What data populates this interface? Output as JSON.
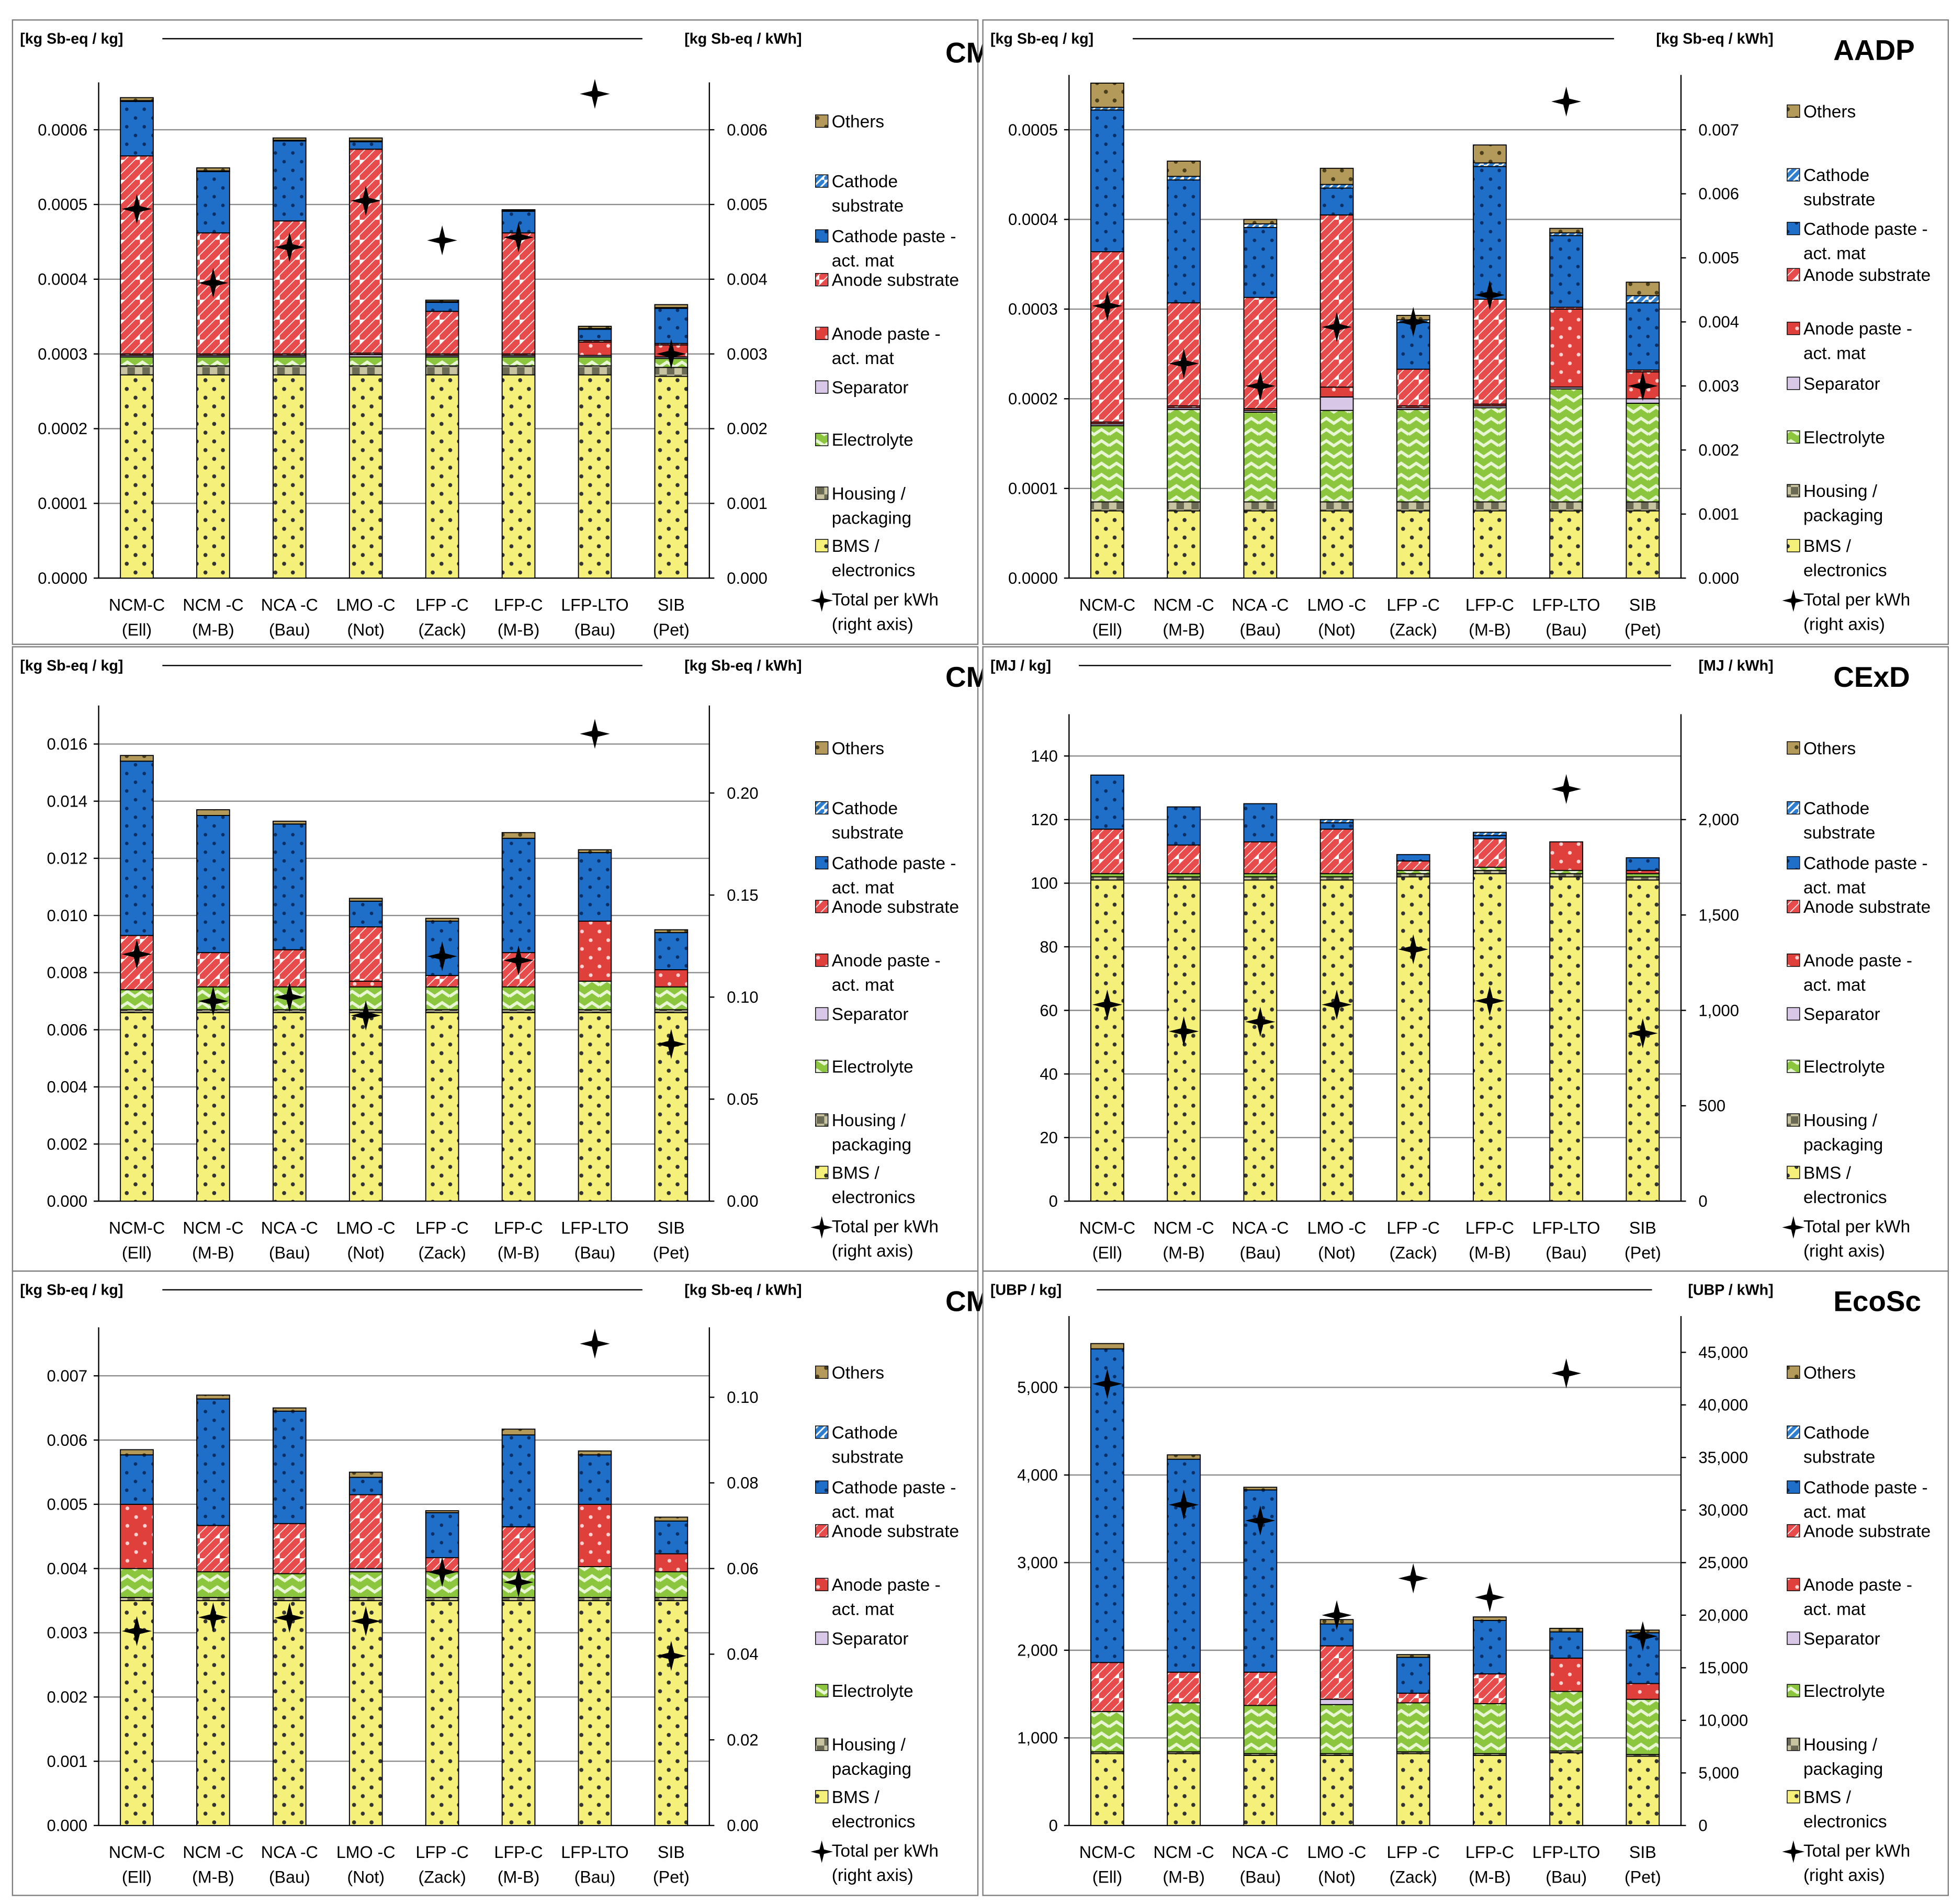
{
  "categories": [
    [
      "NCM-C",
      "(Ell)"
    ],
    [
      "NCM -C",
      "(M-B)"
    ],
    [
      "NCA -C",
      "(Bau)"
    ],
    [
      "LMO -C",
      "(Not)"
    ],
    [
      "LFP -C",
      "(Zack)"
    ],
    [
      "LFP-C",
      "(M-B)"
    ],
    [
      "LFP-LTO",
      "(Bau)"
    ],
    [
      "SIB",
      "(Pet)"
    ]
  ],
  "legend": [
    {
      "key": "others",
      "label": [
        "Others"
      ]
    },
    {
      "key": "cathode_substrate",
      "label": [
        "Cathode",
        "substrate"
      ]
    },
    {
      "key": "cathode_paste",
      "label": [
        "Cathode paste -",
        "act. mat"
      ]
    },
    {
      "key": "anode_substrate",
      "label": [
        "Anode substrate"
      ]
    },
    {
      "key": "anode_paste",
      "label": [
        "Anode paste -",
        "act. mat"
      ]
    },
    {
      "key": "separator",
      "label": [
        "Separator"
      ]
    },
    {
      "key": "electrolyte",
      "label": [
        "Electrolyte"
      ]
    },
    {
      "key": "housing",
      "label": [
        "Housing /",
        "packaging"
      ]
    },
    {
      "key": "bms",
      "label": [
        "BMS /",
        "electronics"
      ]
    },
    {
      "key": "total",
      "label": [
        "Total per kWh",
        "(right axis)"
      ]
    }
  ],
  "colors": {
    "others": "#b49a5a",
    "cathode_substrate": "#2e7fd0",
    "cathode_paste": "#1f6fc8",
    "anode_substrate": "#e84b4b",
    "anode_paste": "#e0403c",
    "separator": "#d9c7e8",
    "electrolyte": "#8cc63f",
    "housing": "#c8c3a0",
    "bms": "#f5f07a",
    "marker": "#000000"
  },
  "chart_data": [
    {
      "type": "bar",
      "stacked": true,
      "title": "CML - ar",
      "ylabel_left": "[kg Sb-eq / kg]",
      "ylabel_right": "[kg Sb-eq / kWh]",
      "ylim_left": [
        0,
        0.00065
      ],
      "yticks_left": [
        "0.0000",
        "0.0001",
        "0.0002",
        "0.0003",
        "0.0004",
        "0.0005",
        "0.0006"
      ],
      "ylim_right": [
        0,
        0.0065
      ],
      "yticks_right": [
        "0.000",
        "0.001",
        "0.002",
        "0.003",
        "0.004",
        "0.005",
        "0.006"
      ],
      "series": {
        "bms": [
          0.000272,
          0.000272,
          0.000272,
          0.000272,
          0.000272,
          0.000272,
          0.000272,
          0.00027
        ],
        "housing": [
          1.2e-05,
          1.2e-05,
          1.2e-05,
          1.2e-05,
          1.2e-05,
          1.2e-05,
          1.2e-05,
          1.2e-05
        ],
        "electrolyte": [
          1.2e-05,
          1.2e-05,
          1.2e-05,
          1.2e-05,
          1.2e-05,
          1.2e-05,
          1.2e-05,
          1.2e-05
        ],
        "separator": [
          2e-06,
          2e-06,
          2e-06,
          3e-06,
          2e-06,
          2e-06,
          2e-06,
          2e-06
        ],
        "anode_paste": [
          2e-06,
          2e-06,
          2e-06,
          2e-06,
          2e-06,
          2e-06,
          1.8e-05,
          1.6e-05
        ],
        "anode_substrate": [
          0.000265,
          0.000162,
          0.000178,
          0.000273,
          5.7e-05,
          0.000162,
          2e-06,
          2e-06
        ],
        "cathode_paste": [
          7.3e-05,
          8.2e-05,
          0.000107,
          1e-05,
          1.2e-05,
          2.9e-05,
          1.5e-05,
          4.7e-05
        ],
        "cathode_substrate": [
          1e-06,
          1e-06,
          1e-06,
          1e-06,
          1e-06,
          1e-06,
          1e-06,
          1e-06
        ],
        "others": [
          4e-06,
          4e-06,
          3e-06,
          4e-06,
          2e-06,
          1e-06,
          3e-06,
          4e-06
        ]
      },
      "total_per_kwh": [
        0.00494,
        0.00395,
        0.00443,
        0.00505,
        0.00452,
        0.00456,
        0.00648,
        0.003
      ]
    },
    {
      "type": "bar",
      "stacked": true,
      "title": "AADP",
      "ylabel_left": "[kg Sb-eq / kg]",
      "ylabel_right": "[kg Sb-eq / kWh]",
      "ylim_left": [
        0,
        0.00055
      ],
      "yticks_left": [
        "0.0000",
        "0.0001",
        "0.0002",
        "0.0003",
        "0.0004",
        "0.0005"
      ],
      "ylim_right": [
        0,
        0.0077
      ],
      "yticks_right": [
        "0.000",
        "0.001",
        "0.002",
        "0.003",
        "0.004",
        "0.005",
        "0.006",
        "0.007"
      ],
      "series": {
        "bms": [
          7.5e-05,
          7.5e-05,
          7.5e-05,
          7.5e-05,
          7.5e-05,
          7.5e-05,
          7.5e-05,
          7.5e-05
        ],
        "housing": [
          1e-05,
          1e-05,
          1e-05,
          1e-05,
          1e-05,
          1e-05,
          1e-05,
          1e-05
        ],
        "electrolyte": [
          8.5e-05,
          0.000103,
          0.0001,
          0.000102,
          0.000103,
          0.000105,
          0.000126,
          0.00011
        ],
        "separator": [
          2e-06,
          2e-06,
          2e-06,
          1.5e-05,
          2e-06,
          2e-06,
          2e-06,
          5e-06
        ],
        "anode_paste": [
          2e-06,
          2e-06,
          2e-06,
          1.1e-05,
          2e-06,
          2e-06,
          8.7e-05,
          3e-05
        ],
        "anode_substrate": [
          0.00019,
          0.000115,
          0.000124,
          0.000192,
          4.1e-05,
          0.000117,
          2e-06,
          2e-06
        ],
        "cathode_paste": [
          0.000158,
          0.000137,
          7.8e-05,
          3e-05,
          5.2e-05,
          0.000148,
          8e-05,
          7.5e-05
        ],
        "cathode_substrate": [
          3e-06,
          4e-06,
          4e-06,
          4e-06,
          3e-06,
          4e-06,
          3e-06,
          8e-06
        ],
        "others": [
          2.7e-05,
          1.7e-05,
          5e-06,
          1.8e-05,
          5e-06,
          2e-05,
          5e-06,
          1.5e-05
        ]
      },
      "total_per_kwh": [
        0.00425,
        0.00335,
        0.003,
        0.00392,
        0.004,
        0.00442,
        0.00744,
        0.003
      ]
    },
    {
      "type": "bar",
      "stacked": true,
      "title": "CML - er",
      "ylabel_left": "[kg Sb-eq / kg]",
      "ylabel_right": "[kg Sb-eq / kWh]",
      "ylim_left": [
        0,
        0.017
      ],
      "yticks_left": [
        "0.000",
        "0.002",
        "0.004",
        "0.006",
        "0.008",
        "0.010",
        "0.012",
        "0.014",
        "0.016"
      ],
      "ylim_right": [
        0,
        0.238
      ],
      "yticks_right": [
        "0.00",
        "0.05",
        "0.10",
        "0.15",
        "0.20"
      ],
      "series": {
        "bms": [
          0.0066,
          0.0066,
          0.0066,
          0.0066,
          0.0066,
          0.0066,
          0.0066,
          0.0066
        ],
        "housing": [
          0.0001,
          0.0001,
          0.0001,
          0.0001,
          0.0001,
          0.0001,
          0.0001,
          0.0001
        ],
        "electrolyte": [
          0.0007,
          0.0008,
          0.0008,
          0.0008,
          0.0008,
          0.0008,
          0.001,
          0.0008
        ],
        "separator": [
          0.0,
          0.0,
          0.0,
          0.0,
          0.0,
          0.0,
          0.0,
          0.0
        ],
        "anode_paste": [
          0.0,
          0.0,
          0.0,
          0.0002,
          0.0,
          0.0,
          0.0021,
          0.0006
        ],
        "anode_substrate": [
          0.0019,
          0.0012,
          0.0013,
          0.0019,
          0.0004,
          0.0012,
          0.0,
          0.0
        ],
        "cathode_paste": [
          0.0061,
          0.0048,
          0.0044,
          0.0009,
          0.0019,
          0.004,
          0.0024,
          0.0013
        ],
        "cathode_substrate": [
          0.0,
          0.0,
          0.0,
          0.0,
          0.0,
          0.0,
          0.0,
          0.0
        ],
        "others": [
          0.0002,
          0.0002,
          0.0001,
          0.0001,
          0.0001,
          0.0002,
          0.0001,
          0.0001
        ]
      },
      "total_per_kwh": [
        0.121,
        0.098,
        0.1,
        0.091,
        0.12,
        0.118,
        0.229,
        0.077
      ]
    },
    {
      "type": "bar",
      "stacked": true,
      "title": "CExD",
      "ylabel_left": "[MJ / kg]",
      "ylabel_right": "[MJ / kWh]",
      "ylim_left": [
        0,
        150
      ],
      "yticks_left": [
        "0",
        "20",
        "40",
        "60",
        "80",
        "100",
        "120",
        "140"
      ],
      "ylim_right": [
        0,
        2500
      ],
      "yticks_right": [
        "0",
        "500",
        "1,000",
        "1,500",
        "2,000"
      ],
      "series": {
        "bms": [
          101,
          101,
          101,
          101,
          102,
          103,
          102,
          101
        ],
        "housing": [
          1,
          1,
          1,
          1,
          1,
          1,
          1,
          1
        ],
        "electrolyte": [
          1,
          1,
          1,
          1,
          1,
          1,
          1,
          1
        ],
        "separator": [
          0,
          0,
          0,
          0,
          0,
          0,
          0,
          0
        ],
        "anode_paste": [
          0,
          0,
          0,
          0,
          0,
          0,
          9,
          1
        ],
        "anode_substrate": [
          14,
          9,
          10,
          14,
          3,
          9,
          0,
          0
        ],
        "cathode_paste": [
          17,
          12,
          12,
          2,
          2,
          1,
          0,
          4
        ],
        "cathode_substrate": [
          0,
          0,
          0,
          1,
          0,
          1,
          0,
          0
        ],
        "others": [
          0,
          0,
          0,
          0,
          0,
          0,
          0,
          0
        ]
      },
      "total_per_kwh": [
        1030,
        890,
        940,
        1030,
        1320,
        1050,
        2160,
        880
      ]
    },
    {
      "type": "bar",
      "stacked": true,
      "title": "CML - rb",
      "ylabel_left": "[kg Sb-eq / kg]",
      "ylabel_right": "[kg Sb-eq / kWh]",
      "ylim_left": [
        0,
        0.0076
      ],
      "yticks_left": [
        "0.000",
        "0.001",
        "0.002",
        "0.003",
        "0.004",
        "0.005",
        "0.006",
        "0.007"
      ],
      "ylim_right": [
        0,
        0.114
      ],
      "yticks_right": [
        "0.00",
        "0.02",
        "0.04",
        "0.06",
        "0.08",
        "0.10"
      ],
      "series": {
        "bms": [
          0.0035,
          0.0035,
          0.0035,
          0.0035,
          0.0035,
          0.0035,
          0.0035,
          0.0035
        ],
        "housing": [
          5e-05,
          5e-05,
          5e-05,
          5e-05,
          5e-05,
          5e-05,
          5e-05,
          5e-05
        ],
        "electrolyte": [
          0.00045,
          0.0004,
          0.00037,
          0.0004,
          0.0004,
          0.0004,
          0.00048,
          0.0004
        ],
        "separator": [
          0.0,
          0.0,
          0.0,
          5e-05,
          0.0,
          0.0,
          0.0,
          0.0
        ],
        "anode_paste": [
          0.001,
          0.0,
          0.0,
          0.0,
          0.0,
          0.0,
          0.00097,
          0.00028
        ],
        "anode_substrate": [
          0.0,
          0.00072,
          0.00078,
          0.00115,
          0.00022,
          0.0007,
          0.0,
          0.0
        ],
        "cathode_paste": [
          0.00077,
          0.00197,
          0.00175,
          0.00027,
          0.0007,
          0.00143,
          0.00077,
          0.00051
        ],
        "cathode_substrate": [
          0.0,
          0.0,
          0.0,
          0.0,
          0.0,
          0.0,
          0.0,
          0.0
        ],
        "others": [
          8e-05,
          6e-05,
          5e-05,
          8e-05,
          3e-05,
          9e-05,
          6e-05,
          6e-05
        ]
      },
      "total_per_kwh": [
        0.0454,
        0.0486,
        0.0485,
        0.0477,
        0.0592,
        0.0568,
        0.1125,
        0.0396
      ]
    },
    {
      "type": "bar",
      "stacked": true,
      "title": "EcoSc",
      "ylabel_left": "[UBP  / kg]",
      "ylabel_right": "[UBP  / kWh]",
      "ylim_left": [
        0,
        5700
      ],
      "yticks_left": [
        "0",
        "1,000",
        "2,000",
        "3,000",
        "4,000",
        "5,000"
      ],
      "ylim_right": [
        0,
        47500
      ],
      "yticks_right": [
        "0",
        "5,000",
        "10,000",
        "15,000",
        "20,000",
        "25,000",
        "30,000",
        "35,000",
        "40,000",
        "45,000"
      ],
      "series": {
        "bms": [
          820,
          820,
          800,
          800,
          820,
          800,
          830,
          790
        ],
        "housing": [
          20,
          20,
          20,
          20,
          20,
          20,
          20,
          20
        ],
        "electrolyte": [
          460,
          560,
          550,
          560,
          560,
          570,
          680,
          630
        ],
        "separator": [
          0,
          0,
          0,
          60,
          0,
          0,
          0,
          0
        ],
        "anode_paste": [
          0,
          0,
          0,
          0,
          0,
          0,
          380,
          180
        ],
        "anode_substrate": [
          560,
          350,
          380,
          610,
          110,
          340,
          0,
          0
        ],
        "cathode_paste": [
          3580,
          2430,
          2080,
          250,
          410,
          610,
          300,
          580
        ],
        "cathode_substrate": [
          0,
          0,
          0,
          0,
          0,
          0,
          0,
          0
        ],
        "others": [
          60,
          50,
          30,
          50,
          30,
          40,
          40,
          30
        ]
      },
      "total_per_kwh": [
        42000,
        30500,
        29000,
        20000,
        23500,
        21700,
        43000,
        18000
      ]
    }
  ]
}
